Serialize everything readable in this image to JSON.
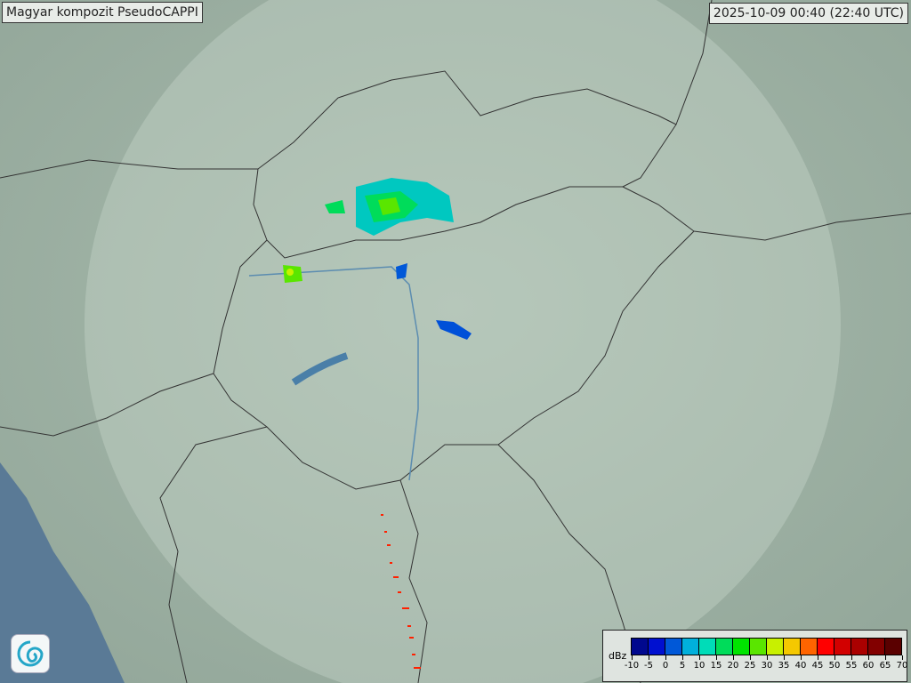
{
  "title": "Magyar kompozit  PseudoCAPPI",
  "timestamp": "2025-10-09 00:40 (22:40 UTC)",
  "legend": {
    "unit": "dBz",
    "ticks": [
      "-10",
      "-5",
      "0",
      "5",
      "10",
      "15",
      "20",
      "25",
      "30",
      "35",
      "40",
      "45",
      "50",
      "55",
      "60",
      "65",
      "70"
    ],
    "colors": [
      "#00088e",
      "#0010d0",
      "#0058d8",
      "#00b0dc",
      "#00dcb8",
      "#00dc5a",
      "#00e400",
      "#5ae600",
      "#c8f000",
      "#f5c800",
      "#ff6400",
      "#ff0000",
      "#d20000",
      "#aa0000",
      "#820000",
      "#5a0000"
    ]
  },
  "logo": {
    "icon": "met-service-swirl-logo"
  }
}
